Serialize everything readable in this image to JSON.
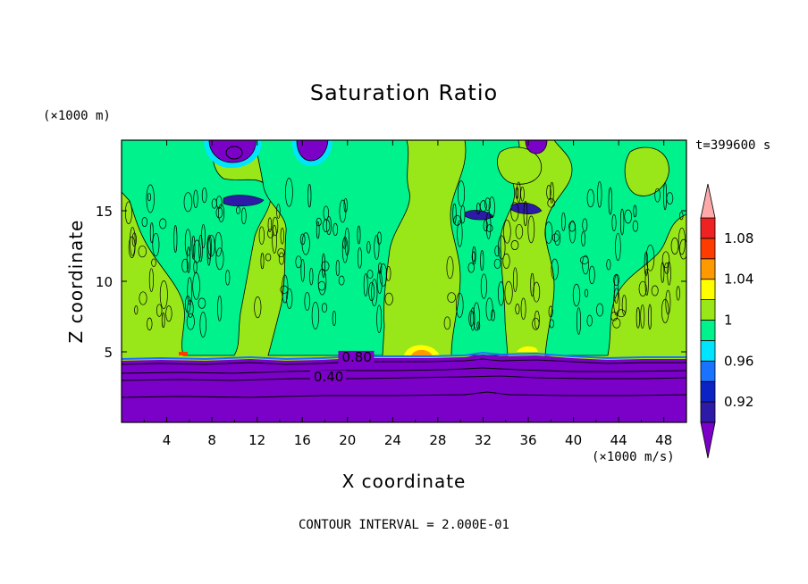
{
  "chart_data": {
    "type": "heatmap",
    "title": "Saturation Ratio",
    "xlabel": "X coordinate",
    "ylabel": "Z coordinate",
    "x_units": "(×1000 m/s)",
    "y_units": "(×1000 m)",
    "time_label": "t=399600 s",
    "footer": "CONTOUR INTERVAL = 2.000E-01",
    "xlim": [
      0,
      50
    ],
    "ylim": [
      0,
      20
    ],
    "x_ticks": [
      4,
      8,
      12,
      16,
      20,
      24,
      28,
      32,
      36,
      40,
      44,
      48
    ],
    "y_ticks": [
      5,
      10,
      15
    ],
    "contour_labels": [
      {
        "text": "0.80",
        "x": 19.5,
        "z": 4.5
      },
      {
        "text": "0.40",
        "x": 17.0,
        "z": 3.1
      }
    ],
    "colorbar": {
      "levels": [
        0.9,
        0.92,
        0.94,
        0.96,
        0.98,
        1.0,
        1.02,
        1.04,
        1.06,
        1.08,
        1.1
      ],
      "colors": [
        "#7b00c8",
        "#2d1aa6",
        "#0c22c4",
        "#1a73ff",
        "#00e5ff",
        "#00f28c",
        "#99e619",
        "#ffff00",
        "#ff9900",
        "#ff3c00",
        "#ee2222",
        "#ffaaaa"
      ],
      "tick_labels": [
        "1.08",
        "1.04",
        "1",
        "0.96",
        "0.92"
      ],
      "tick_values": [
        1.08,
        1.04,
        1.0,
        0.96,
        0.92
      ]
    },
    "regions": {
      "lower_layer_top_z": 4.5,
      "dominant_upper_value": "1",
      "lower_value": "0.40–0.80"
    }
  }
}
